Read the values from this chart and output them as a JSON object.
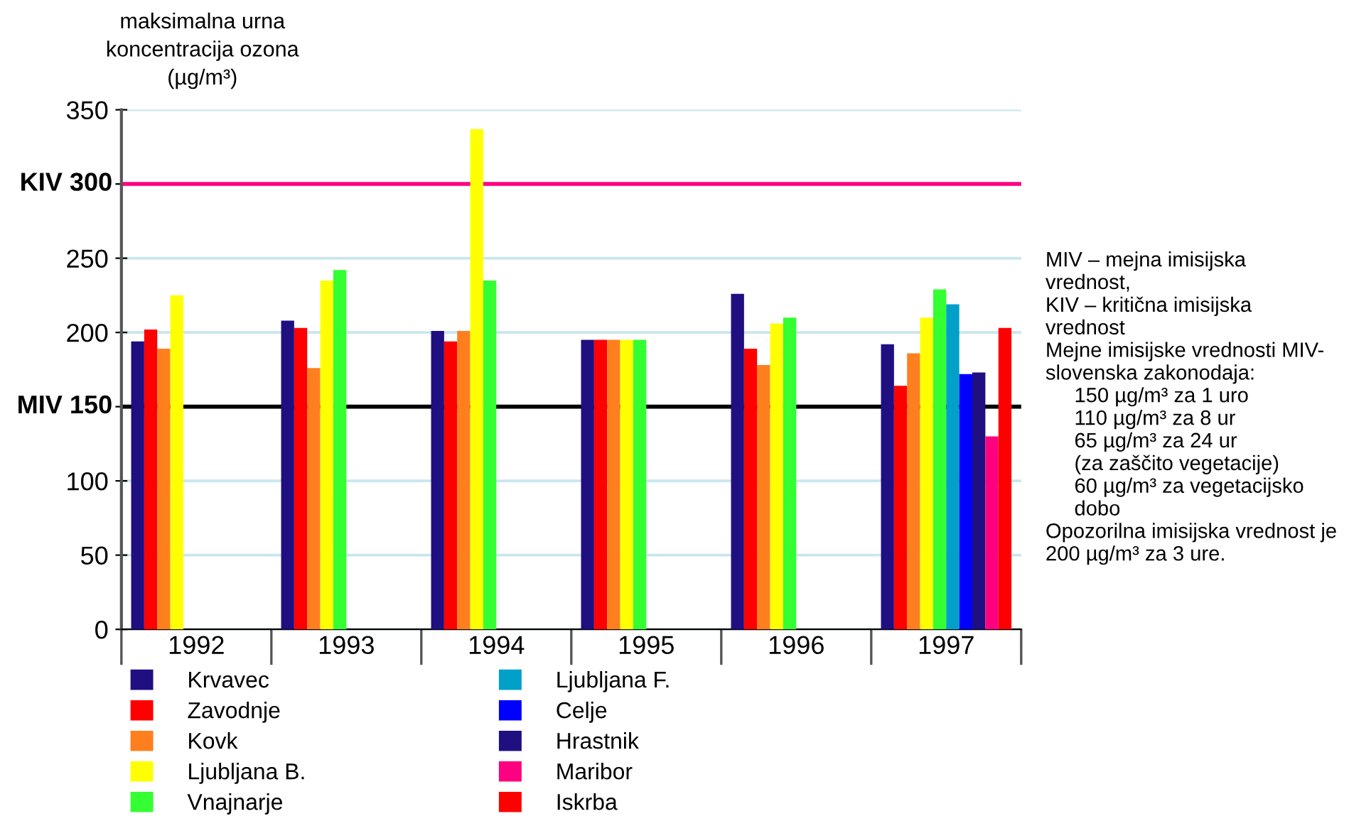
{
  "chart_data": {
    "type": "bar",
    "ylabel": "maksimalna urna\nkoncentracija ozona\n(µg/m³)",
    "categories": [
      "1992",
      "1993",
      "1994",
      "1995",
      "1996",
      "1997"
    ],
    "series": [
      {
        "name": "Krvavec",
        "color": "#1f0f80",
        "values": [
          194,
          208,
          201,
          195,
          226,
          192
        ]
      },
      {
        "name": "Zavodnje",
        "color": "#ff0000",
        "values": [
          202,
          203,
          194,
          195,
          189,
          164
        ]
      },
      {
        "name": "Kovk",
        "color": "#ff7f1f",
        "values": [
          189,
          176,
          201,
          195,
          178,
          186
        ]
      },
      {
        "name": "Ljubljana B.",
        "color": "#ffff00",
        "values": [
          225,
          235,
          337,
          195,
          206,
          210
        ]
      },
      {
        "name": "Vnajnarje",
        "color": "#33ff33",
        "values": [
          null,
          242,
          235,
          195,
          210,
          229
        ]
      },
      {
        "name": "Ljubljana F.",
        "color": "#00a0c8",
        "values": [
          null,
          null,
          null,
          null,
          null,
          219
        ]
      },
      {
        "name": "Celje",
        "color": "#0000ff",
        "values": [
          null,
          null,
          null,
          null,
          null,
          172
        ]
      },
      {
        "name": "Hrastnik",
        "color": "#1f0f80",
        "values": [
          null,
          null,
          null,
          null,
          null,
          173
        ]
      },
      {
        "name": "Maribor",
        "color": "#ff0080",
        "values": [
          null,
          null,
          null,
          null,
          null,
          130
        ]
      },
      {
        "name": "Iskrba",
        "color": "#ff0000",
        "values": [
          null,
          null,
          null,
          null,
          null,
          203
        ]
      }
    ],
    "ylim": [
      0,
      350
    ],
    "yticks": [
      0,
      50,
      100,
      {
        "value": 150,
        "label": null
      },
      200,
      250,
      {
        "value": 300,
        "label": null
      },
      350
    ],
    "ref_lines": [
      {
        "axis": "y",
        "value": 150,
        "label": "MIV 150",
        "color": "#000000"
      },
      {
        "axis": "y",
        "value": 300,
        "label": "KIV 300",
        "color": "#ff0080"
      }
    ],
    "grid": "y",
    "legend": "bottom",
    "annotations": [
      "MIV – mejna imisijska\nvrednost,\nKIV – kritična imisijska\nvrednost\nMejne imisijske vrednosti MIV-\nslovenska zakonodaja:\n     150 µg/m³ za 1 uro\n     110 µg/m³ za 8 ur\n     65 µg/m³ za 24 ur\n     (za zaščito vegetacije)\n     60 µg/m³ za vegetacijsko\n     dobo\nOpozorilna imisijska vrednost je\n200 µg/m³ za 3 ure."
    ]
  }
}
